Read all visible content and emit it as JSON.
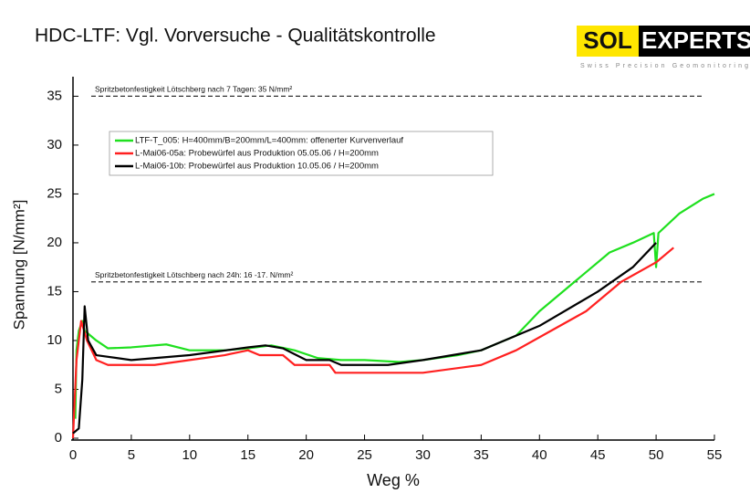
{
  "chart_data": {
    "type": "line",
    "title": "HDC-LTF: Vgl. Vorversuche - Qualitätskontrolle",
    "x_label": "Weg %",
    "y_label": "Spannung [N/mm²]",
    "xlim": [
      0,
      55
    ],
    "ylim": [
      0,
      37
    ],
    "xticks": [
      0,
      5,
      10,
      15,
      20,
      25,
      30,
      35,
      40,
      45,
      50,
      55
    ],
    "yticks": [
      0,
      5,
      10,
      15,
      20,
      25,
      30,
      35
    ],
    "reference_lines": [
      {
        "value": 35,
        "label": "Spritzbetonfestigkeit Lötschberg nach 7 Tagen: 35 N/mm²"
      },
      {
        "value": 16,
        "label": "Spritzbetonfestigkeit Lötschberg nach 24h: 16 -17. N/mm²"
      }
    ],
    "logo": {
      "left": "SOL",
      "right": "EXPERTS",
      "tagline": "Swiss Precision Geomonitoring"
    },
    "series": [
      {
        "name": "LTF-T_005: H=400mm/B=200mm/L=400mm: offenerter Kurvenverlauf",
        "color": "#1fe01f",
        "x": [
          0.2,
          0.3,
          0.5,
          0.8,
          1.0,
          1.5,
          2,
          3,
          5,
          8,
          10,
          13,
          15,
          17,
          19,
          21,
          23,
          25,
          28,
          30,
          33,
          35,
          38,
          40,
          43,
          46,
          48,
          49.8,
          50,
          50.2,
          52,
          54,
          55
        ],
        "values": [
          2,
          9,
          11,
          12,
          11,
          10.5,
          10,
          9.2,
          9.3,
          9.6,
          9,
          9,
          9.2,
          9.5,
          9,
          8.2,
          8,
          8,
          7.8,
          8,
          8.5,
          9,
          10.5,
          13,
          16,
          19,
          20,
          21,
          17.5,
          21,
          23,
          24.5,
          25
        ]
      },
      {
        "name": "L-Mai06-05a: Probewürfel aus Produktion 05.05.06 / H=200mm",
        "color": "#ff2020",
        "x": [
          0,
          0.3,
          0.7,
          1.2,
          2,
          3,
          7,
          10,
          13,
          15,
          16,
          18,
          19,
          22,
          22.5,
          30,
          35,
          38,
          41,
          44,
          47,
          50,
          51.5
        ],
        "values": [
          0,
          8,
          12,
          10,
          8,
          7.5,
          7.5,
          8,
          8.5,
          9,
          8.5,
          8.5,
          7.5,
          7.5,
          6.7,
          6.7,
          7.5,
          9,
          11,
          13,
          16,
          18,
          19.5
        ]
      },
      {
        "name": "L-Mai06-10b: Probewürfel aus Produktion 10.05.06 / H=200mm",
        "color": "#000000",
        "x": [
          0,
          0.5,
          0.8,
          1.0,
          1.3,
          2,
          5,
          10,
          15,
          16.5,
          18,
          20,
          22,
          23,
          27,
          30,
          35,
          40,
          45,
          48,
          50
        ],
        "values": [
          0.5,
          1,
          6,
          13.5,
          10,
          8.5,
          8,
          8.5,
          9.3,
          9.5,
          9.2,
          8,
          8,
          7.5,
          7.5,
          8,
          9,
          11.5,
          15,
          17.5,
          20
        ]
      }
    ]
  }
}
